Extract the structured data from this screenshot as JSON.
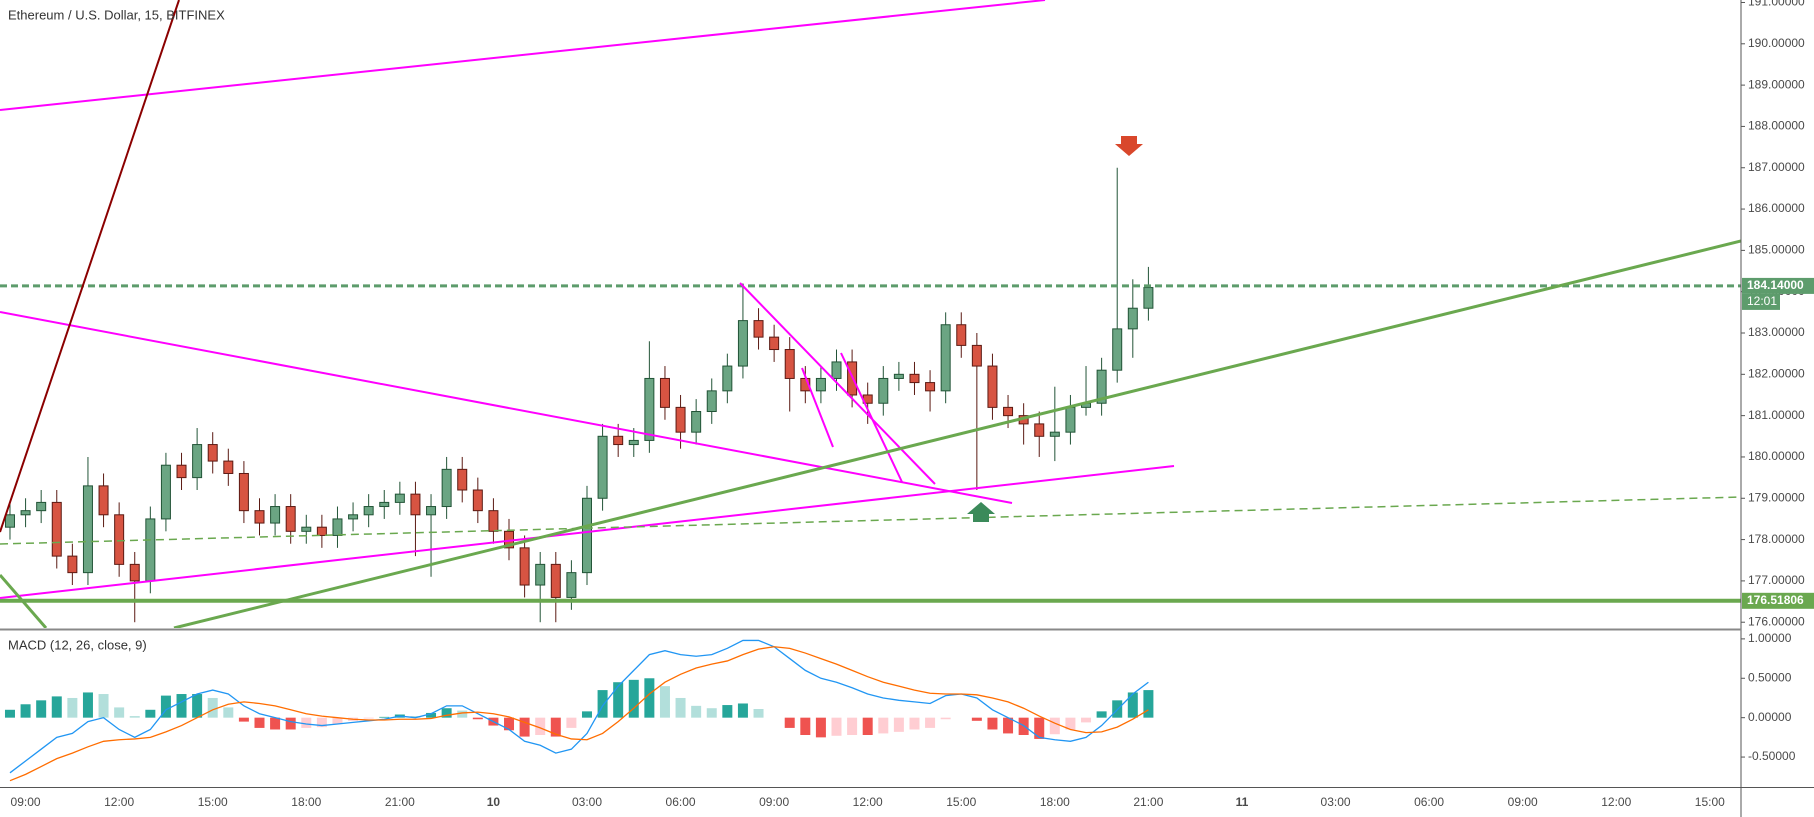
{
  "chart_data": [
    {
      "type": "candlestick",
      "title": "Ethereum / U.S. Dollar, 15, BITFINEX",
      "x": [
        8.5,
        9,
        9.5,
        10,
        10.5,
        11,
        11.5,
        12,
        12.5,
        13,
        13.5,
        14,
        14.5,
        15,
        15.5,
        16,
        16.5,
        17,
        17.5,
        18,
        18.5,
        19,
        19.5,
        20,
        20.5,
        21,
        21.5,
        22,
        22.5,
        23,
        23.5,
        24,
        24.5,
        25,
        25.5,
        26,
        26.5,
        27,
        27.5,
        28,
        28.5,
        29,
        29.5,
        30,
        30.5,
        31,
        31.5,
        32,
        32.5,
        33,
        33.5,
        34,
        34.5,
        35,
        35.5,
        36,
        36.5,
        37,
        37.5,
        38,
        38.5,
        39,
        39.5,
        40,
        40.5,
        41,
        41.5,
        42,
        42.5,
        43,
        43.5,
        44,
        44.5,
        45
      ],
      "open": [
        178.3,
        178.6,
        178.7,
        178.9,
        177.6,
        177.2,
        179.3,
        178.6,
        177.4,
        177.0,
        178.5,
        179.8,
        179.5,
        180.3,
        179.9,
        179.6,
        178.7,
        178.4,
        178.8,
        178.2,
        178.3,
        178.1,
        178.5,
        178.6,
        178.8,
        178.9,
        179.1,
        178.6,
        178.8,
        179.7,
        179.2,
        178.7,
        178.2,
        177.8,
        176.9,
        177.4,
        176.6,
        177.2,
        179.0,
        180.5,
        180.3,
        180.4,
        181.9,
        181.2,
        180.6,
        181.1,
        181.6,
        182.2,
        183.3,
        182.9,
        182.6,
        181.9,
        181.6,
        181.9,
        182.3,
        181.5,
        181.3,
        181.9,
        182.0,
        181.8,
        181.6,
        183.2,
        182.7,
        182.2,
        181.2,
        181.0,
        180.8,
        180.5,
        180.6,
        181.2,
        181.3,
        182.1,
        183.1,
        183.6
      ],
      "high": [
        178.9,
        179.0,
        179.2,
        179.2,
        177.9,
        180.0,
        179.6,
        178.9,
        177.7,
        178.8,
        180.1,
        180.1,
        180.7,
        180.6,
        180.2,
        179.9,
        179.0,
        179.1,
        179.1,
        178.6,
        178.6,
        178.8,
        178.9,
        179.1,
        179.2,
        179.4,
        179.4,
        179.1,
        180.0,
        180.0,
        179.5,
        179.0,
        178.5,
        178.1,
        177.7,
        177.7,
        177.5,
        179.3,
        180.8,
        180.8,
        180.7,
        182.8,
        182.2,
        181.5,
        181.4,
        181.9,
        182.5,
        184.2,
        183.6,
        183.2,
        182.9,
        182.2,
        182.2,
        182.6,
        182.6,
        181.8,
        182.2,
        182.3,
        182.3,
        182.1,
        183.5,
        183.5,
        183.0,
        182.5,
        181.5,
        181.3,
        181.1,
        181.7,
        181.5,
        182.2,
        182.4,
        187.0,
        184.3,
        184.6
      ],
      "low": [
        178.0,
        178.3,
        178.4,
        177.3,
        176.9,
        176.9,
        178.3,
        177.1,
        176.0,
        176.7,
        178.2,
        179.2,
        179.2,
        179.6,
        179.3,
        178.4,
        178.1,
        178.1,
        177.9,
        177.9,
        177.8,
        177.8,
        178.2,
        178.3,
        178.5,
        178.6,
        177.6,
        177.1,
        178.5,
        178.9,
        178.4,
        177.9,
        177.5,
        176.6,
        176.0,
        176.0,
        176.3,
        176.9,
        178.7,
        180.0,
        180.0,
        180.1,
        180.9,
        180.2,
        180.3,
        180.8,
        181.3,
        181.9,
        182.6,
        182.3,
        181.1,
        181.3,
        181.3,
        181.6,
        181.2,
        180.8,
        181.0,
        181.6,
        181.5,
        181.1,
        181.3,
        182.4,
        179.2,
        180.9,
        180.7,
        180.3,
        180.0,
        179.9,
        180.3,
        181.0,
        181.0,
        181.8,
        182.4,
        183.3
      ],
      "close": [
        178.6,
        178.7,
        178.9,
        177.6,
        177.2,
        179.3,
        178.6,
        177.4,
        177.0,
        178.5,
        179.8,
        179.5,
        180.3,
        179.9,
        179.6,
        178.7,
        178.4,
        178.8,
        178.2,
        178.3,
        178.1,
        178.5,
        178.6,
        178.8,
        178.9,
        179.1,
        178.6,
        178.8,
        179.7,
        179.2,
        178.7,
        178.2,
        177.8,
        176.9,
        177.4,
        176.6,
        177.2,
        179.0,
        180.5,
        180.3,
        180.4,
        181.9,
        181.2,
        180.6,
        181.1,
        181.6,
        182.2,
        183.3,
        182.9,
        182.6,
        181.9,
        181.6,
        181.9,
        182.3,
        181.5,
        181.3,
        181.9,
        182.0,
        181.8,
        181.6,
        183.2,
        182.7,
        182.2,
        181.2,
        181.0,
        180.8,
        180.5,
        180.6,
        181.2,
        181.3,
        182.1,
        183.1,
        183.6,
        184.1
      ],
      "up_color": "#6ba583",
      "up_border": "#225437",
      "down_color": "#d75442",
      "down_border": "#5b1a13",
      "xlim": [
        8.18,
        64.0
      ],
      "ylim": [
        175.86,
        191.06
      ],
      "xticks": [
        {
          "value": 9,
          "label": "09:00"
        },
        {
          "value": 12,
          "label": "12:00"
        },
        {
          "value": 15,
          "label": "15:00"
        },
        {
          "value": 18,
          "label": "18:00"
        },
        {
          "value": 21,
          "label": "21:00"
        },
        {
          "value": 24,
          "label": "10"
        },
        {
          "value": 27,
          "label": "03:00"
        },
        {
          "value": 30,
          "label": "06:00"
        },
        {
          "value": 33,
          "label": "09:00"
        },
        {
          "value": 36,
          "label": "12:00"
        },
        {
          "value": 39,
          "label": "15:00"
        },
        {
          "value": 42,
          "label": "18:00"
        },
        {
          "value": 45,
          "label": "21:00"
        },
        {
          "value": 48,
          "label": "11"
        },
        {
          "value": 51,
          "label": "03:00"
        },
        {
          "value": 54,
          "label": "06:00"
        },
        {
          "value": 57,
          "label": "09:00"
        },
        {
          "value": 60,
          "label": "12:00"
        },
        {
          "value": 63,
          "label": "15:00"
        }
      ],
      "yticks": [
        {
          "value": 176,
          "label": "176.00000"
        },
        {
          "value": 177,
          "label": "177.00000"
        },
        {
          "value": 178,
          "label": "178.00000"
        },
        {
          "value": 179,
          "label": "179.00000"
        },
        {
          "value": 180,
          "label": "180.00000"
        },
        {
          "value": 181,
          "label": "181.00000"
        },
        {
          "value": 182,
          "label": "182.00000"
        },
        {
          "value": 183,
          "label": "183.00000"
        },
        {
          "value": 184,
          "label": "184.00000"
        },
        {
          "value": 185,
          "label": "185.00000"
        },
        {
          "value": 186,
          "label": "186.00000"
        },
        {
          "value": 187,
          "label": "187.00000"
        },
        {
          "value": 188,
          "label": "188.00000"
        },
        {
          "value": 189,
          "label": "189.00000"
        },
        {
          "value": 190,
          "label": "190.00000"
        },
        {
          "value": 191,
          "label": "191.00000"
        }
      ],
      "grid": true,
      "price_lines": [
        {
          "value": 184.14,
          "label": "184.14000",
          "color": "#5d9c6c",
          "style": "dashed"
        },
        {
          "value": 176.51806,
          "label": "176.51806",
          "color": "#6aa84f",
          "style": "solid"
        }
      ],
      "countdown": "12:01"
    },
    {
      "type": "macd",
      "title": "MACD (12, 26, close, 9)",
      "ylim": [
        -0.88,
        1.1
      ],
      "yticks": [
        {
          "value": 1,
          "label": "1.00000"
        },
        {
          "value": 0.5,
          "label": "0.50000"
        },
        {
          "value": 0,
          "label": "0.00000"
        },
        {
          "value": -0.5,
          "label": "-0.50000"
        }
      ],
      "series": [
        {
          "color": "#2196f3",
          "values": [
            -0.7,
            -0.55,
            -0.4,
            -0.25,
            -0.2,
            -0.05,
            0.0,
            -0.15,
            -0.25,
            -0.15,
            0.1,
            0.2,
            0.3,
            0.35,
            0.3,
            0.15,
            0.05,
            0.0,
            -0.05,
            -0.08,
            -0.1,
            -0.08,
            -0.06,
            -0.04,
            -0.02,
            0.02,
            0.0,
            0.05,
            0.15,
            0.15,
            0.05,
            -0.05,
            -0.15,
            -0.3,
            -0.35,
            -0.45,
            -0.4,
            -0.2,
            0.15,
            0.4,
            0.6,
            0.8,
            0.85,
            0.8,
            0.78,
            0.8,
            0.88,
            0.98,
            0.98,
            0.9,
            0.75,
            0.6,
            0.5,
            0.45,
            0.38,
            0.3,
            0.25,
            0.22,
            0.2,
            0.18,
            0.28,
            0.3,
            0.25,
            0.1,
            0.0,
            -0.1,
            -0.25,
            -0.28,
            -0.3,
            -0.25,
            -0.1,
            0.1,
            0.3,
            0.45
          ]
        },
        {
          "color": "#ff6d00",
          "values": [
            -0.8,
            -0.72,
            -0.62,
            -0.52,
            -0.45,
            -0.37,
            -0.3,
            -0.28,
            -0.27,
            -0.25,
            -0.18,
            -0.1,
            0.0,
            0.1,
            0.17,
            0.2,
            0.18,
            0.15,
            0.1,
            0.05,
            0.02,
            0.0,
            -0.02,
            -0.03,
            -0.03,
            -0.02,
            -0.02,
            -0.01,
            0.03,
            0.06,
            0.07,
            0.05,
            0.01,
            -0.06,
            -0.13,
            -0.21,
            -0.27,
            -0.28,
            -0.2,
            -0.05,
            0.12,
            0.3,
            0.45,
            0.55,
            0.63,
            0.68,
            0.72,
            0.8,
            0.87,
            0.9,
            0.88,
            0.82,
            0.75,
            0.68,
            0.6,
            0.52,
            0.45,
            0.4,
            0.35,
            0.31,
            0.3,
            0.3,
            0.29,
            0.25,
            0.2,
            0.12,
            0.02,
            -0.07,
            -0.15,
            -0.19,
            -0.18,
            -0.12,
            -0.02,
            0.1
          ]
        }
      ],
      "histogram": {
        "values": [
          0.1,
          0.17,
          0.22,
          0.27,
          0.25,
          0.32,
          0.3,
          0.13,
          0.02,
          0.1,
          0.28,
          0.3,
          0.3,
          0.25,
          0.13,
          -0.05,
          -0.13,
          -0.15,
          -0.15,
          -0.13,
          -0.12,
          -0.08,
          -0.04,
          -0.01,
          0.01,
          0.04,
          0.02,
          0.06,
          0.12,
          0.09,
          -0.02,
          -0.1,
          -0.16,
          -0.24,
          -0.22,
          -0.24,
          -0.13,
          0.08,
          0.35,
          0.45,
          0.48,
          0.5,
          0.4,
          0.25,
          0.15,
          0.12,
          0.16,
          0.18,
          0.11,
          0.0,
          -0.13,
          -0.22,
          -0.25,
          -0.23,
          -0.22,
          -0.22,
          -0.2,
          -0.18,
          -0.15,
          -0.13,
          -0.02,
          0.0,
          -0.04,
          -0.15,
          -0.2,
          -0.22,
          -0.27,
          -0.21,
          -0.15,
          -0.06,
          0.08,
          0.22,
          0.32,
          0.35
        ],
        "colors": [
          "#26a69a",
          "#b2dfdb",
          "#ef5350",
          "#ffcdd2"
        ]
      }
    }
  ]
}
